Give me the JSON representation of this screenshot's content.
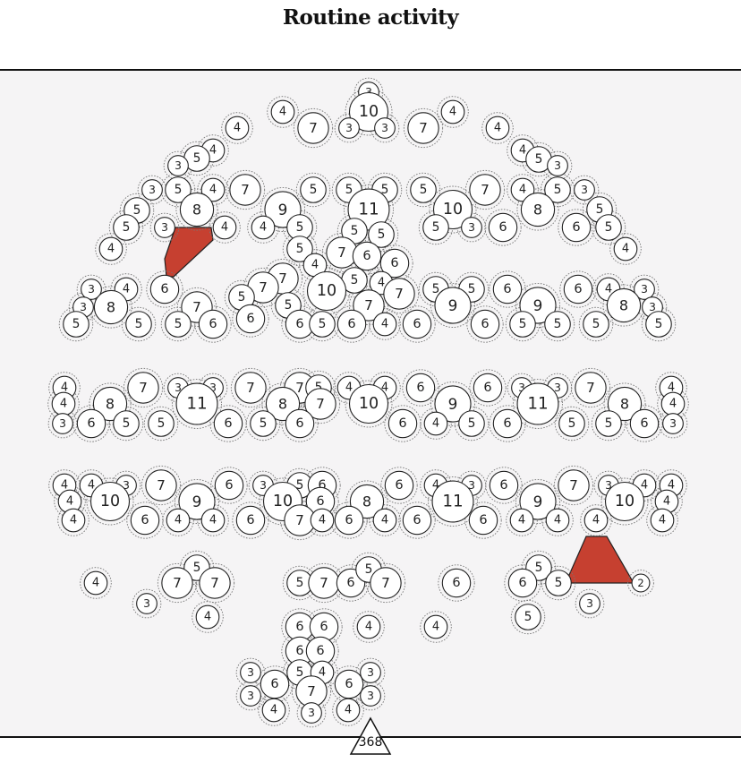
{
  "title": "Routine activity",
  "total": "368",
  "nodes": [
    [
      412,
      103,
      3
    ],
    [
      316,
      125,
      4
    ],
    [
      412,
      125,
      10
    ],
    [
      506,
      125,
      4
    ],
    [
      350,
      143,
      7
    ],
    [
      390,
      143,
      3
    ],
    [
      430,
      143,
      3
    ],
    [
      473,
      143,
      7
    ],
    [
      265,
      143,
      4
    ],
    [
      556,
      143,
      4
    ],
    [
      238,
      168,
      4
    ],
    [
      220,
      177,
      5
    ],
    [
      199,
      185,
      3
    ],
    [
      584,
      168,
      4
    ],
    [
      602,
      178,
      5
    ],
    [
      623,
      185,
      3
    ],
    [
      170,
      212,
      3
    ],
    [
      199,
      212,
      5
    ],
    [
      238,
      212,
      4
    ],
    [
      274,
      212,
      7
    ],
    [
      350,
      212,
      5
    ],
    [
      390,
      212,
      5
    ],
    [
      430,
      212,
      5
    ],
    [
      473,
      212,
      5
    ],
    [
      542,
      212,
      7
    ],
    [
      584,
      212,
      4
    ],
    [
      623,
      212,
      5
    ],
    [
      653,
      212,
      3
    ],
    [
      153,
      235,
      5
    ],
    [
      220,
      234,
      8
    ],
    [
      316,
      234,
      9
    ],
    [
      335,
      254,
      5
    ],
    [
      412,
      234,
      11
    ],
    [
      506,
      234,
      10
    ],
    [
      601,
      234,
      8
    ],
    [
      670,
      234,
      5
    ],
    [
      141,
      254,
      5
    ],
    [
      184,
      254,
      3
    ],
    [
      251,
      254,
      4
    ],
    [
      294,
      254,
      4
    ],
    [
      396,
      258,
      5
    ],
    [
      426,
      262,
      5
    ],
    [
      487,
      254,
      5
    ],
    [
      527,
      254,
      3
    ],
    [
      562,
      254,
      6
    ],
    [
      644,
      254,
      6
    ],
    [
      680,
      254,
      5
    ],
    [
      124,
      278,
      4
    ],
    [
      699,
      278,
      4
    ],
    [
      382,
      282,
      7
    ],
    [
      335,
      278,
      5
    ],
    [
      410,
      286,
      6
    ],
    [
      441,
      294,
      6
    ],
    [
      352,
      296,
      4
    ],
    [
      102,
      323,
      3
    ],
    [
      141,
      323,
      4
    ],
    [
      184,
      323,
      6
    ],
    [
      316,
      311,
      7
    ],
    [
      294,
      321,
      7
    ],
    [
      270,
      332,
      5
    ],
    [
      396,
      313,
      5
    ],
    [
      426,
      316,
      4
    ],
    [
      446,
      328,
      7
    ],
    [
      365,
      325,
      10
    ],
    [
      487,
      323,
      5
    ],
    [
      527,
      323,
      5
    ],
    [
      567,
      323,
      6
    ],
    [
      646,
      323,
      6
    ],
    [
      680,
      323,
      4
    ],
    [
      720,
      323,
      3
    ],
    [
      93,
      343,
      3
    ],
    [
      124,
      343,
      8
    ],
    [
      220,
      343,
      7
    ],
    [
      322,
      341,
      5
    ],
    [
      412,
      341,
      7
    ],
    [
      506,
      341,
      9
    ],
    [
      601,
      341,
      9
    ],
    [
      697,
      341,
      8
    ],
    [
      729,
      343,
      3
    ],
    [
      85,
      362,
      5
    ],
    [
      155,
      362,
      5
    ],
    [
      199,
      362,
      5
    ],
    [
      238,
      362,
      6
    ],
    [
      280,
      356,
      6
    ],
    [
      335,
      362,
      6
    ],
    [
      360,
      362,
      5
    ],
    [
      393,
      362,
      6
    ],
    [
      430,
      362,
      4
    ],
    [
      466,
      362,
      6
    ],
    [
      542,
      362,
      6
    ],
    [
      584,
      362,
      5
    ],
    [
      623,
      362,
      5
    ],
    [
      666,
      362,
      5
    ],
    [
      736,
      362,
      5
    ],
    [
      72,
      433,
      4
    ],
    [
      160,
      433,
      7
    ],
    [
      199,
      433,
      3
    ],
    [
      238,
      433,
      3
    ],
    [
      280,
      433,
      7
    ],
    [
      335,
      433,
      7
    ],
    [
      356,
      433,
      5
    ],
    [
      390,
      433,
      4
    ],
    [
      430,
      433,
      4
    ],
    [
      470,
      433,
      6
    ],
    [
      545,
      433,
      6
    ],
    [
      583,
      433,
      3
    ],
    [
      623,
      433,
      3
    ],
    [
      660,
      433,
      7
    ],
    [
      750,
      433,
      4
    ],
    [
      71,
      451,
      4
    ],
    [
      123,
      451,
      8
    ],
    [
      220,
      451,
      11
    ],
    [
      316,
      451,
      8
    ],
    [
      358,
      451,
      7
    ],
    [
      412,
      451,
      10
    ],
    [
      506,
      451,
      9
    ],
    [
      601,
      451,
      11
    ],
    [
      698,
      451,
      8
    ],
    [
      752,
      451,
      4
    ],
    [
      70,
      473,
      3
    ],
    [
      102,
      473,
      6
    ],
    [
      141,
      473,
      5
    ],
    [
      180,
      473,
      5
    ],
    [
      255,
      473,
      6
    ],
    [
      294,
      473,
      5
    ],
    [
      335,
      473,
      6
    ],
    [
      450,
      473,
      6
    ],
    [
      487,
      473,
      4
    ],
    [
      527,
      473,
      5
    ],
    [
      567,
      473,
      6
    ],
    [
      639,
      473,
      5
    ],
    [
      680,
      473,
      5
    ],
    [
      720,
      473,
      6
    ],
    [
      752,
      473,
      3
    ],
    [
      72,
      542,
      4
    ],
    [
      102,
      542,
      4
    ],
    [
      141,
      542,
      3
    ],
    [
      180,
      542,
      7
    ],
    [
      256,
      542,
      6
    ],
    [
      294,
      542,
      3
    ],
    [
      335,
      542,
      5
    ],
    [
      360,
      542,
      6
    ],
    [
      446,
      542,
      6
    ],
    [
      487,
      542,
      4
    ],
    [
      527,
      542,
      3
    ],
    [
      563,
      542,
      6
    ],
    [
      641,
      542,
      7
    ],
    [
      680,
      542,
      3
    ],
    [
      720,
      542,
      4
    ],
    [
      750,
      542,
      4
    ],
    [
      78,
      560,
      4
    ],
    [
      123,
      560,
      10
    ],
    [
      220,
      560,
      9
    ],
    [
      316,
      560,
      10
    ],
    [
      358,
      560,
      6
    ],
    [
      410,
      560,
      8
    ],
    [
      506,
      560,
      11
    ],
    [
      601,
      560,
      9
    ],
    [
      698,
      560,
      10
    ],
    [
      745,
      560,
      4
    ],
    [
      82,
      581,
      4
    ],
    [
      162,
      581,
      6
    ],
    [
      199,
      581,
      4
    ],
    [
      238,
      581,
      4
    ],
    [
      280,
      581,
      6
    ],
    [
      335,
      581,
      7
    ],
    [
      360,
      581,
      4
    ],
    [
      390,
      581,
      6
    ],
    [
      430,
      581,
      4
    ],
    [
      466,
      581,
      6
    ],
    [
      540,
      581,
      6
    ],
    [
      583,
      581,
      4
    ],
    [
      623,
      581,
      4
    ],
    [
      666,
      581,
      4
    ],
    [
      740,
      581,
      4
    ],
    [
      107,
      651,
      4
    ],
    [
      220,
      634,
      5
    ],
    [
      198,
      651,
      7
    ],
    [
      240,
      651,
      7
    ],
    [
      164,
      674,
      3
    ],
    [
      232,
      689,
      4
    ],
    [
      335,
      651,
      5
    ],
    [
      362,
      651,
      7
    ],
    [
      392,
      651,
      6
    ],
    [
      412,
      636,
      5
    ],
    [
      431,
      651,
      7
    ],
    [
      510,
      651,
      6
    ],
    [
      602,
      634,
      5
    ],
    [
      584,
      651,
      6
    ],
    [
      624,
      651,
      5
    ],
    [
      716,
      651,
      2
    ],
    [
      659,
      674,
      3
    ],
    [
      590,
      689,
      5
    ],
    [
      335,
      700,
      6
    ],
    [
      362,
      700,
      6
    ],
    [
      412,
      700,
      4
    ],
    [
      487,
      700,
      4
    ],
    [
      335,
      727,
      6
    ],
    [
      358,
      727,
      6
    ],
    [
      280,
      751,
      3
    ],
    [
      307,
      764,
      6
    ],
    [
      335,
      751,
      5
    ],
    [
      360,
      751,
      4
    ],
    [
      414,
      751,
      3
    ],
    [
      348,
      772,
      7
    ],
    [
      390,
      764,
      6
    ],
    [
      414,
      777,
      3
    ],
    [
      280,
      777,
      3
    ],
    [
      306,
      793,
      4
    ],
    [
      348,
      796,
      3
    ],
    [
      389,
      793,
      4
    ]
  ],
  "wedges": [
    [
      [
        196,
        254
      ],
      [
        236,
        254
      ],
      [
        238,
        268
      ],
      [
        194,
        309
      ],
      [
        186,
        309
      ],
      [
        184,
        289
      ]
    ],
    [
      [
        655,
        599
      ],
      [
        678,
        599
      ],
      [
        708,
        651
      ],
      [
        632,
        651
      ]
    ]
  ]
}
